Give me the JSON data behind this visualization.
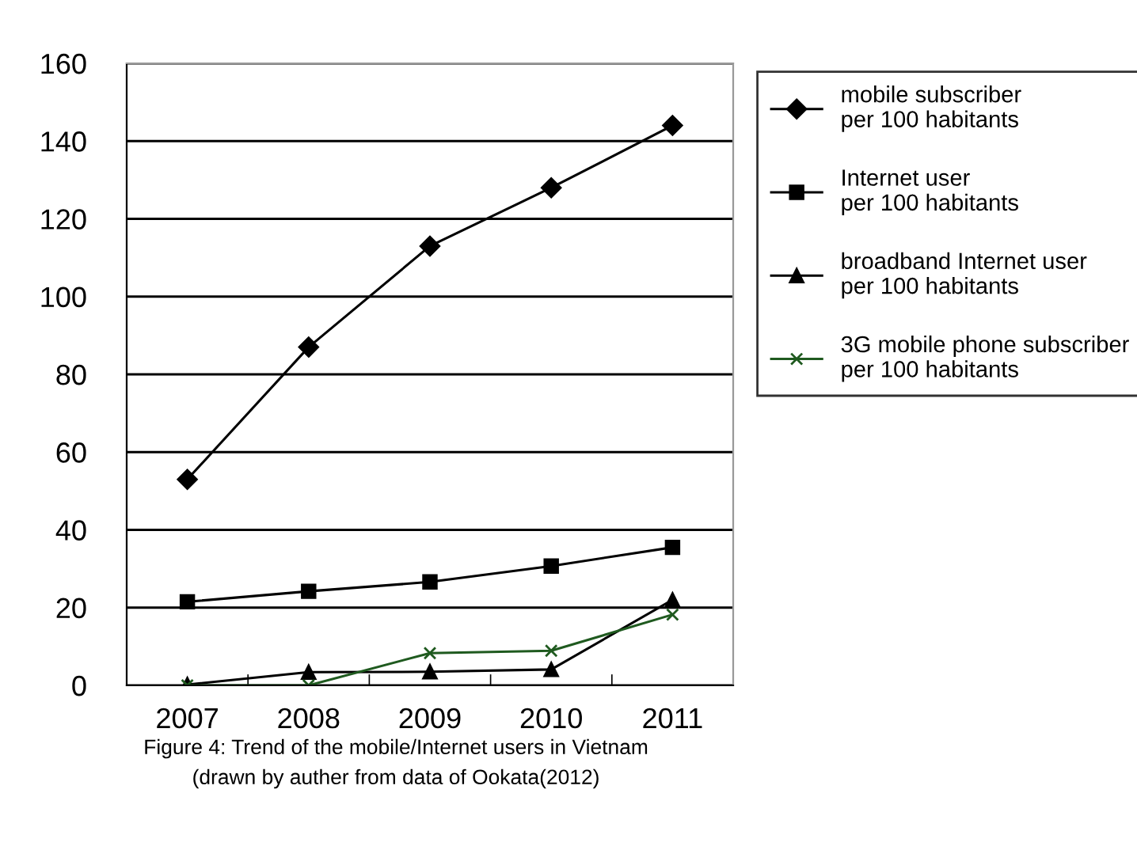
{
  "chart_data": {
    "type": "line",
    "categories": [
      "2007",
      "2008",
      "2009",
      "2010",
      "2011"
    ],
    "series": [
      {
        "name": "mobile subscriber per 100 habitants",
        "color": "#000000",
        "marker": "diamond",
        "values": [
          53,
          87,
          113,
          128,
          144
        ]
      },
      {
        "name": "Internet user per 100 habitants",
        "color": "#000000",
        "marker": "square",
        "values": [
          21.5,
          24.2,
          26.6,
          30.7,
          35.5
        ]
      },
      {
        "name": "broadband Internet user per 100 habitants",
        "color": "#000000",
        "marker": "triangle",
        "values": [
          0.2,
          3.4,
          3.5,
          4.1,
          22
        ]
      },
      {
        "name": "3G mobile phone subscriber per 100 habitants",
        "color": "#1f5a1f",
        "marker": "cross",
        "values": [
          0,
          0,
          8.3,
          8.9,
          18.2
        ]
      }
    ],
    "ylim": [
      0,
      160
    ],
    "yticks": [
      0,
      20,
      40,
      60,
      80,
      100,
      120,
      140,
      160
    ],
    "grid": "y",
    "legend": "right",
    "line_style": "solid",
    "annotations": [
      "Figure 4: Trend of the mobile/Internet users in Vietnam",
      "(drawn by auther from data of Ookata(2012)"
    ]
  }
}
